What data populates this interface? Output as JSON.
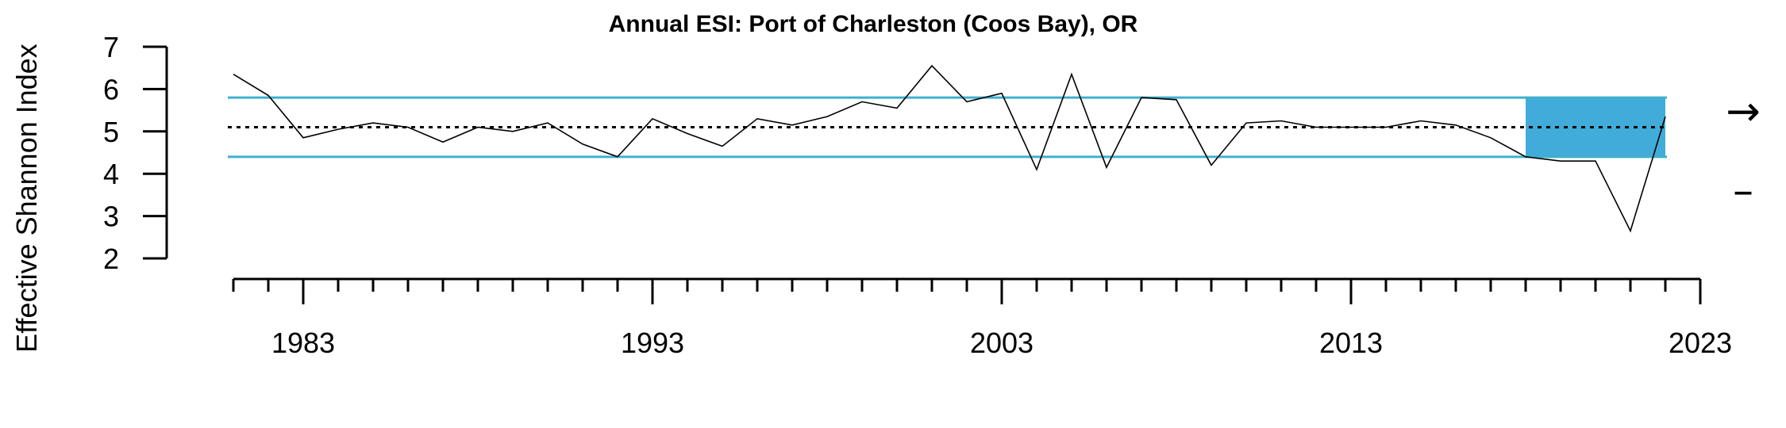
{
  "chart_data": {
    "type": "line",
    "title": "Annual ESI: Port of Charleston (Coos Bay), OR",
    "xlabel": "",
    "ylabel": "Effective Shannon Index",
    "xlim": [
      1981,
      2023
    ],
    "ylim": [
      2,
      7
    ],
    "x_ticks_major": [
      1983,
      1993,
      2003,
      2013,
      2023
    ],
    "y_ticks": [
      2,
      3,
      4,
      5,
      6,
      7
    ],
    "series": [
      {
        "values_x": [
          1981,
          1982,
          1983,
          1984,
          1985,
          1986,
          1987,
          1988,
          1989,
          1990,
          1991,
          1992,
          1993,
          1994,
          1995,
          1996,
          1997,
          1998,
          1999,
          2000,
          2001,
          2002,
          2003,
          2004,
          2005,
          2006,
          2007,
          2008,
          2009,
          2010,
          2011,
          2012,
          2013,
          2014,
          2015,
          2016,
          2017,
          2018,
          2019,
          2020,
          2021,
          2022
        ],
        "values_y": [
          6.35,
          5.85,
          4.85,
          5.05,
          5.2,
          5.1,
          4.75,
          5.1,
          5.0,
          5.2,
          4.7,
          4.4,
          5.3,
          4.95,
          4.65,
          5.3,
          5.15,
          5.35,
          5.7,
          5.55,
          6.55,
          5.7,
          5.9,
          4.1,
          6.35,
          4.15,
          5.8,
          5.75,
          4.2,
          5.2,
          5.25,
          5.1,
          5.1,
          5.1,
          5.25,
          5.15,
          4.85,
          4.4,
          4.3,
          4.3,
          2.65,
          5.35
        ]
      }
    ],
    "reference_lines": {
      "mean": 5.1,
      "upper_sd": 5.8,
      "lower_sd": 4.4
    },
    "highlight_range": {
      "x_start": 2018,
      "x_end": 2022
    },
    "trend_indicators": {
      "mean_trend": "→",
      "sd_trend": "–"
    },
    "colors": {
      "series": "#000000",
      "sd_lines": "#3fb0cd",
      "highlight": "#41acd9",
      "mean_line": "#000000"
    },
    "grid": false,
    "legend": "none"
  }
}
